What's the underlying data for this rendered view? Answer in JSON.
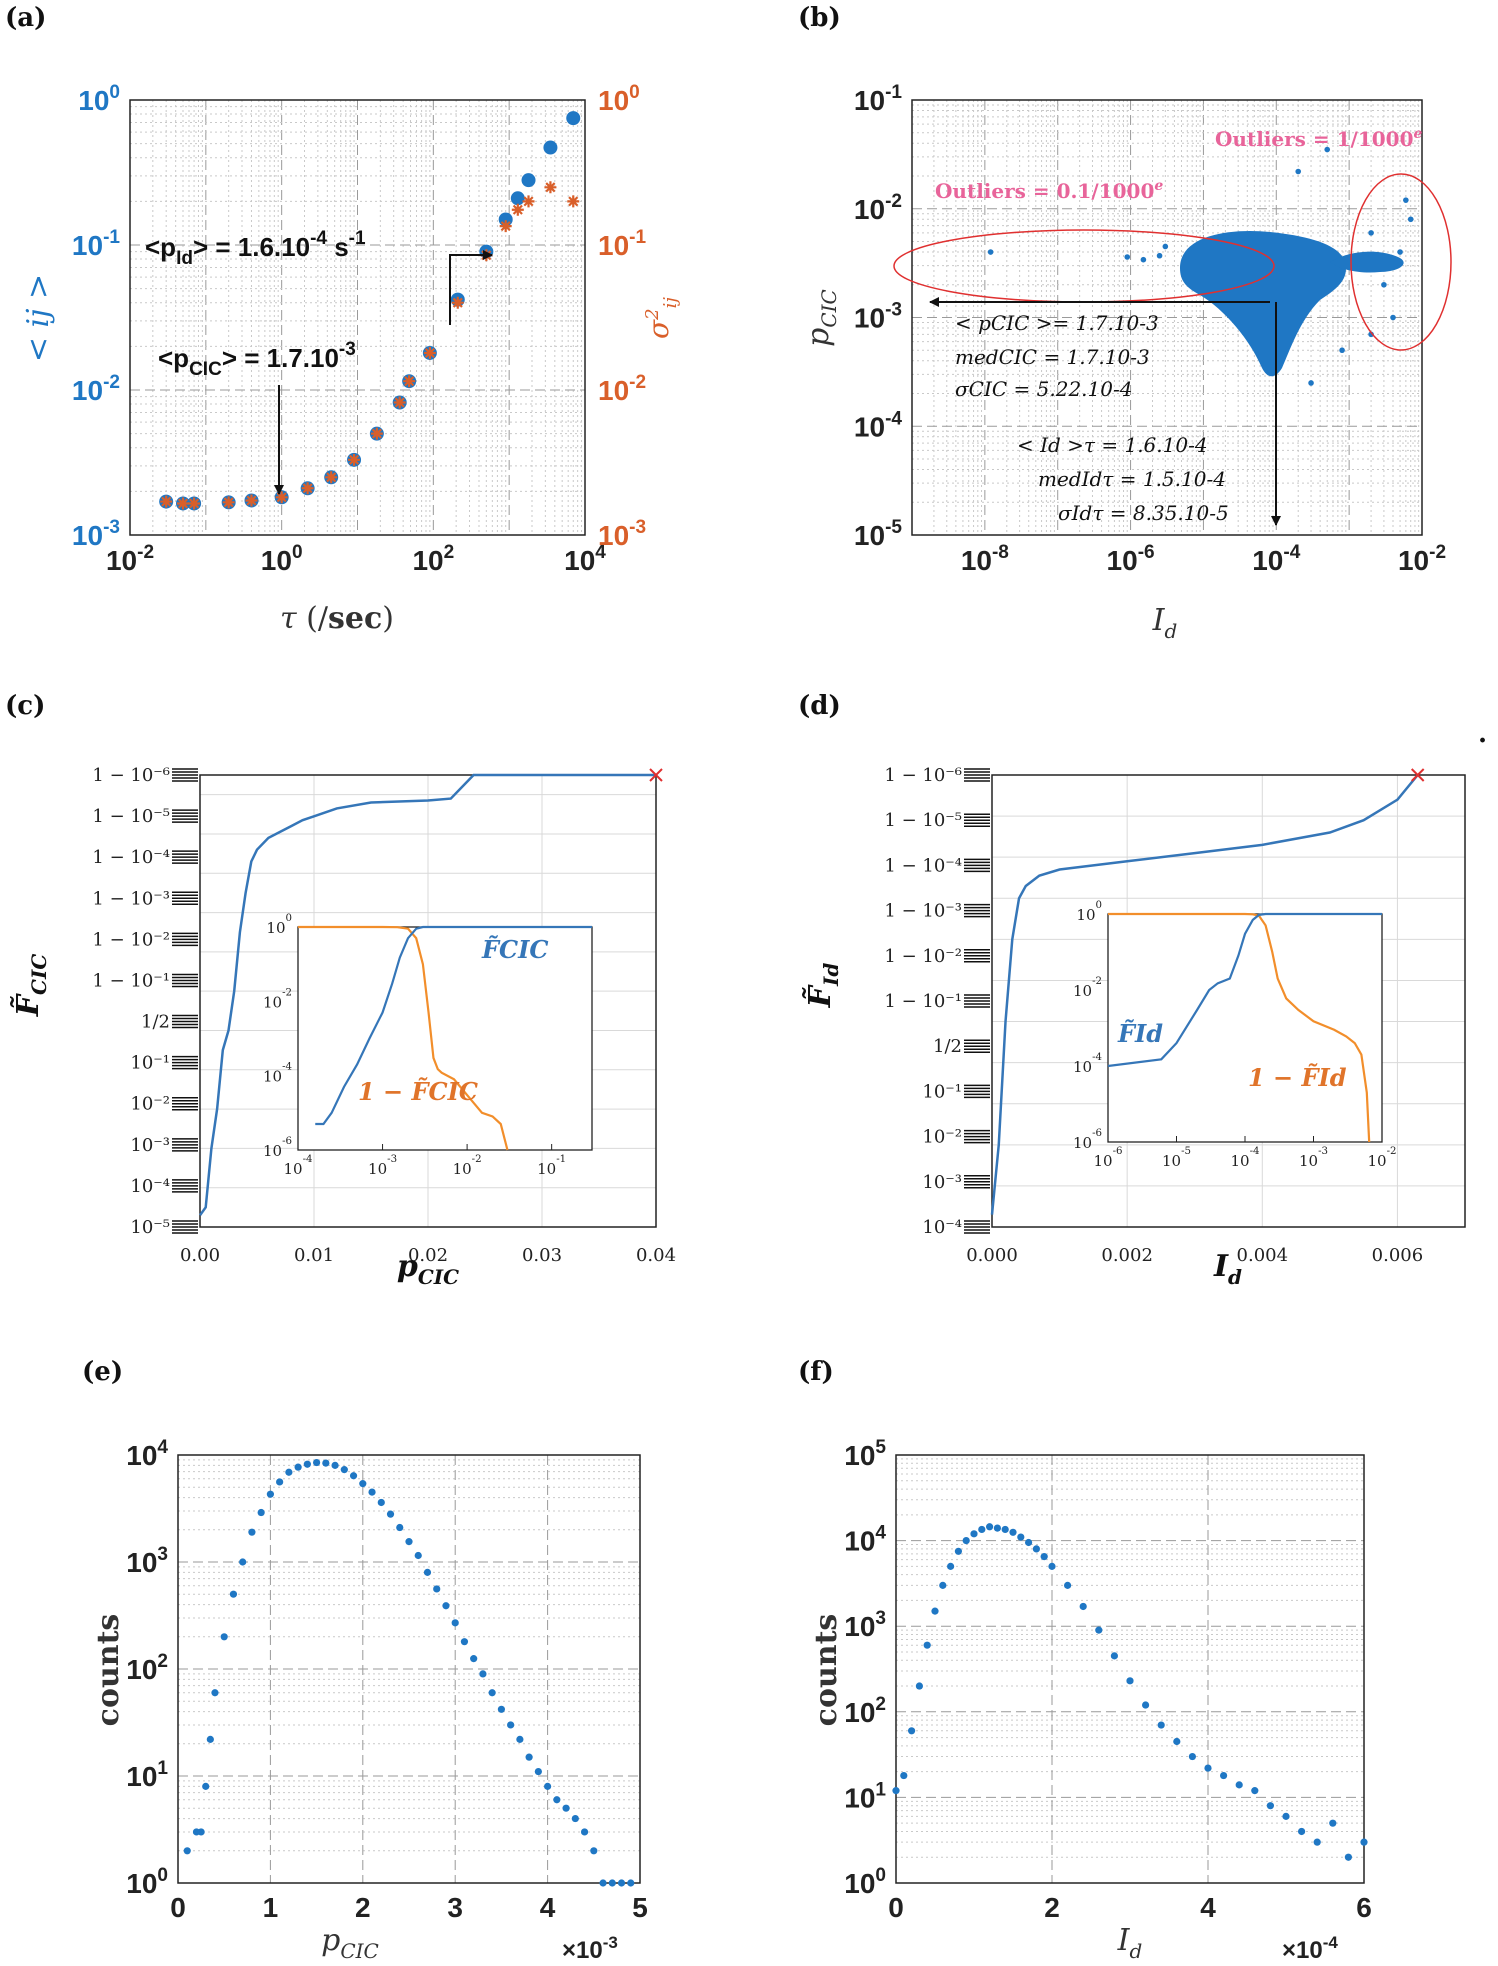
{
  "figure": {
    "panel_labels": [
      "(a)",
      "(b)",
      "(c)",
      "(d)",
      "(e)",
      "(f)"
    ],
    "stray_mark": "."
  },
  "chart_data": [
    {
      "id": "a",
      "type": "scatter",
      "xscale": "log",
      "yscale": "log",
      "xlim": [
        0.01,
        10000
      ],
      "ylim": [
        0.001,
        1
      ],
      "xlabel": "τ (/sec)",
      "ylabel_left": "< ij >",
      "ylabel_right": "σ²ij",
      "xticks": [
        "10-2",
        "100",
        "102",
        "104"
      ],
      "yticks_left": [
        "10-3",
        "10-2",
        "10-1",
        "100"
      ],
      "yticks_right": [
        "10-3",
        "10-2",
        "10-1",
        "100"
      ],
      "series": [
        {
          "name": "<ij>",
          "color": "#1f77c4",
          "marker": "circle",
          "x": [
            0.03,
            0.05,
            0.07,
            0.2,
            0.4,
            1,
            2.2,
            4.5,
            9,
            18,
            36,
            48,
            90,
            210,
            500,
            900,
            1300,
            1800,
            3500,
            7000
          ],
          "y": [
            0.0017,
            0.00165,
            0.00165,
            0.00168,
            0.00173,
            0.00182,
            0.0021,
            0.0025,
            0.0033,
            0.005,
            0.0082,
            0.0115,
            0.018,
            0.042,
            0.09,
            0.15,
            0.21,
            0.28,
            0.47,
            0.75
          ]
        },
        {
          "name": "σ²ij",
          "color": "#d95f2a",
          "marker": "star",
          "x": [
            0.03,
            0.05,
            0.07,
            0.2,
            0.4,
            1,
            2.2,
            4.5,
            9,
            18,
            36,
            48,
            90,
            210,
            500,
            900,
            1300,
            1800,
            3500,
            7000
          ],
          "y": [
            0.0017,
            0.00165,
            0.00165,
            0.00168,
            0.00173,
            0.00182,
            0.0021,
            0.0025,
            0.0033,
            0.005,
            0.0082,
            0.0115,
            0.018,
            0.04,
            0.085,
            0.135,
            0.175,
            0.2,
            0.25,
            0.2
          ]
        }
      ],
      "annotations": {
        "pid_prefix": "<p",
        "pid_sub": "Id",
        "pid_mid": "> = 1.6.10",
        "pid_exp": "-4",
        "pid_suffix": " s",
        "pid_unit_exp": "-1",
        "pcic_prefix": "<p",
        "pcic_sub": "CIC",
        "pcic_mid": "> = 1.7.10",
        "pcic_exp": "-3"
      }
    },
    {
      "id": "b",
      "type": "scatter",
      "xscale": "log",
      "yscale": "log",
      "xlim": [
        1e-09,
        0.01
      ],
      "ylim": [
        1e-05,
        0.1
      ],
      "xlabel": "I_d",
      "ylabel": "p_CIC",
      "xticks": [
        "10-8",
        "10-6",
        "10-4",
        "10-2"
      ],
      "yticks": [
        "10-5",
        "10-4",
        "10-3",
        "10-2",
        "10-1"
      ],
      "outlier_points": [
        [
          1.2e-08,
          0.004
        ],
        [
          9e-07,
          0.0036
        ],
        [
          1.5e-06,
          0.0034
        ],
        [
          2.5e-06,
          0.0037
        ],
        [
          3e-06,
          0.0045
        ],
        [
          0.0002,
          0.022
        ],
        [
          0.0005,
          0.035
        ],
        [
          0.002,
          0.006
        ],
        [
          0.003,
          0.002
        ],
        [
          0.004,
          0.001
        ],
        [
          0.006,
          0.012
        ],
        [
          0.007,
          0.008
        ],
        [
          0.005,
          0.004
        ],
        [
          0.0003,
          0.00025
        ],
        [
          0.0008,
          0.0005
        ],
        [
          0.002,
          0.0007
        ]
      ],
      "annotations": {
        "outliers_1": "Outliers = 1/1000e",
        "outliers_2": "Outliers = 0.1/1000e",
        "stat_p_mean": "< pCIC >= 1.7.10-3",
        "stat_p_med": "medCIC = 1.7.10-3",
        "stat_p_sigma": "σCIC = 5.22.10-4",
        "stat_i_mean": "< Id >τ = 1.6.10-4",
        "stat_i_med": "medIdτ = 1.5.10-4",
        "stat_i_sigma": "σIdτ = 8.35.10-5"
      }
    },
    {
      "id": "c",
      "type": "line",
      "xlabel": "p_CIC",
      "ylabel": "F̃_CIC",
      "xlim": [
        0,
        0.04
      ],
      "xticks": [
        "0.00",
        "0.01",
        "0.02",
        "0.03",
        "0.04"
      ],
      "yticks": [
        "1 − 10⁻⁶",
        "1 − 10⁻⁵",
        "1 − 10⁻⁴",
        "1 − 10⁻³",
        "1 − 10⁻²",
        "1 − 10⁻¹",
        "1/2",
        "10⁻¹",
        "10⁻²",
        "10⁻³",
        "10⁻⁴",
        "10⁻⁵"
      ],
      "cdf": {
        "x": [
          0.0,
          0.0005,
          0.001,
          0.0015,
          0.002,
          0.0025,
          0.003,
          0.0035,
          0.004,
          0.0045,
          0.005,
          0.006,
          0.007,
          0.008,
          0.009,
          0.01,
          0.012,
          0.015,
          0.02,
          0.022,
          0.024,
          0.03,
          0.04
        ],
        "level": [
          0.3,
          0.5,
          2.0,
          3.0,
          4.5,
          5.0,
          6.0,
          7.5,
          8.5,
          9.3,
          9.6,
          9.9,
          10.05,
          10.2,
          10.35,
          10.45,
          10.65,
          10.8,
          10.85,
          10.9,
          11.5,
          11.5,
          11.5
        ]
      },
      "inset": {
        "xticks": [
          "10-4",
          "10-3",
          "10-2",
          "10-1"
        ],
        "yticks": [
          "10-6",
          "10-4",
          "10-2",
          "100"
        ],
        "legend_cdf": "F̃CIC",
        "legend_ccdf": "1 − F̃CIC",
        "cdf_x": [
          0.00016,
          0.0002,
          0.00025,
          0.00035,
          0.0005,
          0.0007,
          0.001,
          0.0013,
          0.0016,
          0.002,
          0.0025,
          0.003
        ],
        "cdf_y": [
          5e-06,
          5e-06,
          1e-05,
          5e-05,
          0.0002,
          0.001,
          0.005,
          0.03,
          0.15,
          0.5,
          0.9,
          1.0
        ],
        "ccdf_x": [
          0.0001,
          0.001,
          0.0015,
          0.002,
          0.0025,
          0.003,
          0.0035,
          0.004,
          0.0045,
          0.005,
          0.007,
          0.01,
          0.015,
          0.02,
          0.025,
          0.03
        ],
        "ccdf_y": [
          1.0,
          1.0,
          0.99,
          0.9,
          0.5,
          0.1,
          0.005,
          0.0003,
          0.00015,
          0.00012,
          8e-05,
          3e-05,
          1e-05,
          8e-06,
          5e-06,
          1e-06
        ]
      }
    },
    {
      "id": "d",
      "type": "line",
      "xlabel": "I_d",
      "ylabel": "F̃_Id",
      "xlim": [
        0,
        0.007
      ],
      "xticks": [
        "0.000",
        "0.002",
        "0.004",
        "0.006"
      ],
      "yticks": [
        "1 − 10⁻⁶",
        "1 − 10⁻⁵",
        "1 − 10⁻⁴",
        "1 − 10⁻³",
        "1 − 10⁻²",
        "1 − 10⁻¹",
        "1/2",
        "10⁻¹",
        "10⁻²",
        "10⁻³",
        "10⁻⁴"
      ],
      "cdf": {
        "x": [
          0.0,
          0.0001,
          0.0002,
          0.0003,
          0.0004,
          0.0005,
          0.0007,
          0.001,
          0.002,
          0.003,
          0.004,
          0.005,
          0.0055,
          0.006,
          0.0063
        ],
        "level": [
          0.3,
          2.0,
          5.0,
          7.0,
          8.0,
          8.3,
          8.55,
          8.7,
          8.9,
          9.1,
          9.3,
          9.6,
          9.9,
          10.4,
          11.0
        ]
      },
      "inset": {
        "xticks": [
          "10-6",
          "10-5",
          "10-4",
          "10-3",
          "10-2"
        ],
        "yticks": [
          "10-6",
          "10-4",
          "10-2",
          "100"
        ],
        "legend_cdf": "F̃Id",
        "legend_ccdf": "1 − F̃Id",
        "cdf_x": [
          1e-06,
          6e-06,
          1e-05,
          2e-05,
          3e-05,
          4e-05,
          6e-05,
          8e-05,
          0.0001,
          0.00013,
          0.00016,
          0.0002,
          0.0003
        ],
        "cdf_y": [
          0.0001,
          0.00015,
          0.0004,
          0.003,
          0.01,
          0.015,
          0.02,
          0.08,
          0.3,
          0.7,
          0.95,
          1.0,
          1.0
        ],
        "ccdf_x": [
          1e-06,
          0.0001,
          0.00013,
          0.00016,
          0.0002,
          0.00025,
          0.0003,
          0.0004,
          0.0006,
          0.001,
          0.002,
          0.003,
          0.004,
          0.005,
          0.006,
          0.0065
        ],
        "ccdf_y": [
          1.0,
          1.0,
          0.98,
          0.9,
          0.5,
          0.1,
          0.02,
          0.006,
          0.003,
          0.0015,
          0.0009,
          0.0006,
          0.0004,
          0.0002,
          2e-05,
          1e-06
        ]
      }
    },
    {
      "id": "e",
      "type": "scatter",
      "xscale": "linear",
      "yscale": "log",
      "xlim": [
        0,
        5
      ],
      "ylim": [
        1,
        10000
      ],
      "xlabel": "p_CIC",
      "ylabel": "counts",
      "x_multiplier": "×10-3",
      "xticks": [
        "0",
        "1",
        "2",
        "3",
        "4",
        "5"
      ],
      "yticks": [
        "100",
        "101",
        "102",
        "103",
        "104"
      ],
      "x": [
        0.1,
        0.2,
        0.25,
        0.3,
        0.35,
        0.4,
        0.5,
        0.6,
        0.7,
        0.8,
        0.9,
        1.0,
        1.1,
        1.2,
        1.3,
        1.4,
        1.5,
        1.6,
        1.7,
        1.8,
        1.9,
        2.0,
        2.1,
        2.2,
        2.3,
        2.4,
        2.5,
        2.6,
        2.7,
        2.8,
        2.9,
        3.0,
        3.1,
        3.2,
        3.3,
        3.4,
        3.5,
        3.6,
        3.7,
        3.8,
        3.9,
        4.0,
        4.1,
        4.2,
        4.3,
        4.4,
        4.5,
        4.6,
        4.7,
        4.8,
        4.9
      ],
      "y": [
        2,
        3,
        3,
        8,
        22,
        60,
        200,
        500,
        1000,
        1900,
        2900,
        4300,
        5600,
        6900,
        7700,
        8200,
        8500,
        8400,
        8000,
        7300,
        6400,
        5400,
        4500,
        3600,
        2800,
        2100,
        1550,
        1150,
        800,
        560,
        390,
        270,
        180,
        125,
        90,
        60,
        42,
        30,
        22,
        15,
        11,
        8,
        6,
        5,
        4,
        3,
        2,
        1,
        1,
        1,
        1
      ]
    },
    {
      "id": "f",
      "type": "scatter",
      "xscale": "linear",
      "yscale": "log",
      "xlim": [
        0,
        6
      ],
      "ylim": [
        1,
        100000
      ],
      "xlabel": "I_d",
      "ylabel": "counts",
      "x_multiplier": "×10-4",
      "xticks": [
        "0",
        "2",
        "4",
        "6"
      ],
      "yticks": [
        "100",
        "101",
        "102",
        "103",
        "104",
        "105"
      ],
      "x": [
        0.0,
        0.1,
        0.2,
        0.3,
        0.4,
        0.5,
        0.6,
        0.7,
        0.8,
        0.9,
        1.0,
        1.1,
        1.2,
        1.3,
        1.4,
        1.5,
        1.6,
        1.7,
        1.8,
        1.9,
        2.0,
        2.2,
        2.4,
        2.6,
        2.8,
        3.0,
        3.2,
        3.4,
        3.6,
        3.8,
        4.0,
        4.2,
        4.4,
        4.6,
        4.8,
        5.0,
        5.2,
        5.4,
        5.6,
        5.8,
        6.0
      ],
      "y": [
        12,
        18,
        60,
        200,
        600,
        1500,
        3000,
        5000,
        7500,
        10000,
        12000,
        13500,
        14500,
        14000,
        13500,
        12500,
        11000,
        9500,
        8000,
        6500,
        5000,
        3000,
        1700,
        900,
        450,
        230,
        120,
        70,
        45,
        30,
        22,
        18,
        14,
        12,
        8,
        6,
        4,
        3,
        5,
        2,
        3
      ]
    }
  ]
}
